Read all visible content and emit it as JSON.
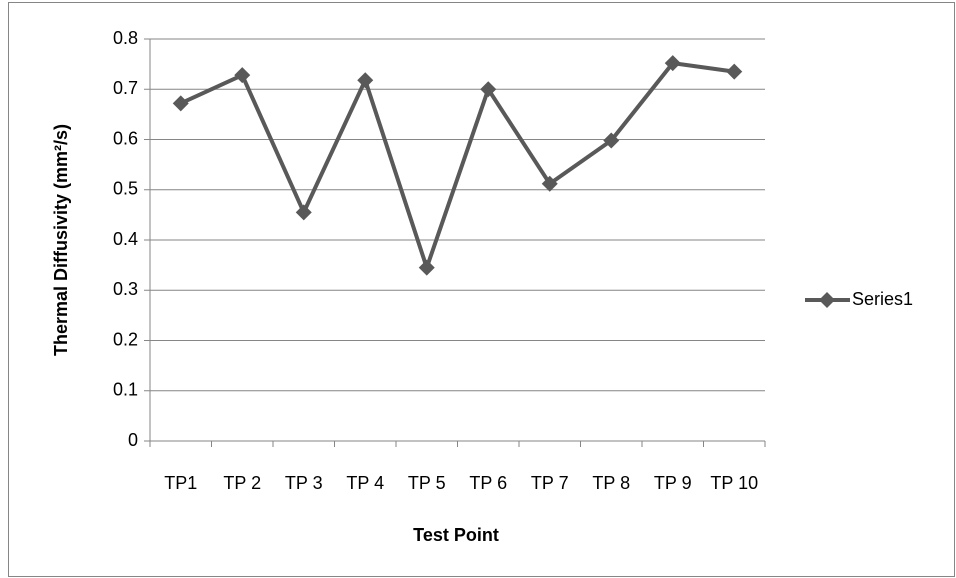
{
  "chart_data": {
    "type": "line",
    "x_label": "Test Point",
    "y_label": "Thermal Diffusivity (mm²/s)",
    "categories": [
      "TP1",
      "TP 2",
      "TP 3",
      "TP 4",
      "TP 5",
      "TP 6",
      "TP 7",
      "TP 8",
      "TP 9",
      "TP 10"
    ],
    "series": [
      {
        "name": "Series1",
        "color": "#595959",
        "values": [
          0.672,
          0.728,
          0.455,
          0.718,
          0.345,
          0.7,
          0.512,
          0.598,
          0.752,
          0.735
        ]
      }
    ],
    "ylim": [
      0,
      0.8
    ],
    "yticks": [
      0,
      0.1,
      0.2,
      0.3,
      0.4,
      0.5,
      0.6,
      0.7,
      0.8
    ],
    "grid": true,
    "legend": "right"
  }
}
